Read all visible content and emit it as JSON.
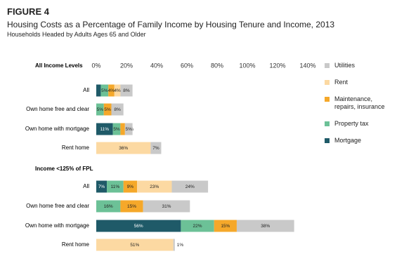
{
  "header": {
    "figure_label": "FIGURE 4",
    "title": "Housing Costs as a Percentage of Family Income by Housing Tenure and Income, 2013",
    "subtitle": "Households Headed by Adults Ages 65 and Older"
  },
  "chart_data": [
    {
      "type": "stacked-bar-horizontal",
      "title": "All Income Levels",
      "categories": [
        "All",
        "Own home free and clear",
        "Own home with mortgage",
        "Rent home"
      ],
      "series": [
        {
          "name": "Mortgage",
          "color": "#1f5a68",
          "values": [
            3,
            null,
            11,
            null
          ],
          "value_labels": [
            "3%",
            null,
            "11%",
            null
          ]
        },
        {
          "name": "Property tax",
          "color": "#6cc197",
          "values": [
            5,
            5,
            5,
            null
          ],
          "value_labels": [
            "5%",
            "5%",
            "5%",
            null
          ]
        },
        {
          "name": "Maintenance, repairs, insurance",
          "color": "#f5a82a",
          "values": [
            4,
            5,
            3,
            null
          ],
          "value_labels": [
            "4%",
            "5%",
            "3%",
            null
          ]
        },
        {
          "name": "Rent",
          "color": "#fcd9a2",
          "values": [
            4,
            null,
            null,
            36
          ],
          "value_labels": [
            "4%",
            null,
            null,
            "36%"
          ]
        },
        {
          "name": "Utilities",
          "color": "#c9c9c9",
          "values": [
            8,
            8,
            5,
            7
          ],
          "value_labels": [
            "8%",
            "8%",
            "5%",
            "7%"
          ]
        }
      ],
      "xlim": [
        0,
        140
      ],
      "xticks": [
        {
          "value": 0,
          "label": "0%"
        },
        {
          "value": 20,
          "label": "20%"
        },
        {
          "value": 40,
          "label": "40%"
        },
        {
          "value": 60,
          "label": "60%"
        },
        {
          "value": 80,
          "label": "80%"
        },
        {
          "value": 100,
          "label": "100%"
        },
        {
          "value": 120,
          "label": "120%"
        },
        {
          "value": 140,
          "label": "140%"
        }
      ]
    },
    {
      "type": "stacked-bar-horizontal",
      "title": "Income <125% of FPL",
      "categories": [
        "All",
        "Own home free and clear",
        "Own home with mortgage",
        "Rent home"
      ],
      "series": [
        {
          "name": "Mortgage",
          "color": "#1f5a68",
          "values": [
            7,
            null,
            56,
            null
          ],
          "value_labels": [
            "7%",
            null,
            "56%",
            null
          ]
        },
        {
          "name": "Property tax",
          "color": "#6cc197",
          "values": [
            11,
            16,
            22,
            null
          ],
          "value_labels": [
            "11%",
            "16%",
            "22%",
            null
          ]
        },
        {
          "name": "Maintenance, repairs, insurance",
          "color": "#f5a82a",
          "values": [
            9,
            15,
            15,
            null
          ],
          "value_labels": [
            "9%",
            "15%",
            "15%",
            null
          ]
        },
        {
          "name": "Rent",
          "color": "#fcd9a2",
          "values": [
            23,
            null,
            null,
            51
          ],
          "value_labels": [
            "23%",
            null,
            null,
            "51%"
          ]
        },
        {
          "name": "Utilities",
          "color": "#c9c9c9",
          "values": [
            24,
            31,
            38,
            1
          ],
          "value_labels": [
            "24%",
            "31%",
            "38%",
            "1%"
          ]
        }
      ],
      "xlim": [
        0,
        140
      ]
    }
  ]
}
